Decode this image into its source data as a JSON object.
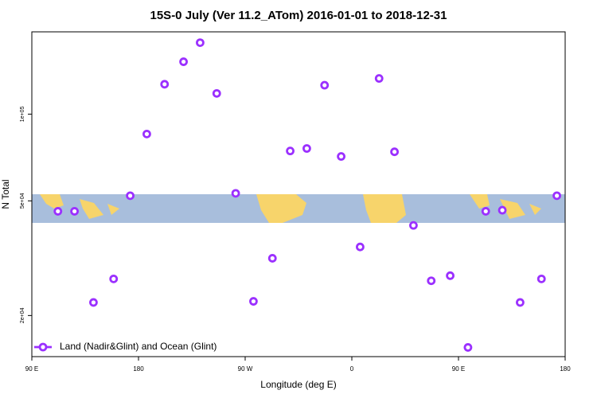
{
  "chart_data": {
    "type": "scatter",
    "title": "15S-0 July (Ver 11.2_ATom)   2016-01-01 to 2018-12-31",
    "xlabel": "Longitude (deg E)",
    "ylabel": "N Total",
    "log_y": true,
    "xlim": [
      90,
      540
    ],
    "xticks": [
      {
        "value": 90,
        "label": "90 E"
      },
      180,
      {
        "value": 270,
        "label": "90 W"
      },
      {
        "value": 360,
        "label": "0"
      },
      {
        "value": 450,
        "label": "90 E"
      },
      {
        "value": 540,
        "label": "180"
      }
    ],
    "ylim": [
      14400,
      193000
    ],
    "yticks": [
      {
        "value": 20000,
        "label": "2e+04"
      },
      {
        "value": 50000,
        "label": "5e+04"
      },
      {
        "value": 100000,
        "label": "1e+05"
      }
    ],
    "legend": "bottom-left",
    "series": [
      {
        "name": "Land (Nadir&Glint) and Ocean (Glint)",
        "color": "#9b30ff",
        "x": [
          112,
          126,
          142,
          159,
          173,
          187,
          202,
          218,
          232,
          246,
          262,
          277,
          293,
          308,
          322,
          337,
          351,
          367,
          383,
          396,
          412,
          427,
          443,
          458,
          473,
          487,
          502,
          520,
          533
        ],
        "values": [
          46000,
          46000,
          22200,
          26800,
          52100,
          85300,
          127000,
          152000,
          177000,
          118000,
          53100,
          22400,
          31600,
          74500,
          76000,
          126000,
          71300,
          34600,
          133000,
          74000,
          41100,
          26400,
          27500,
          15500,
          46000,
          46400,
          22200,
          26800,
          52100
        ]
      }
    ]
  }
}
